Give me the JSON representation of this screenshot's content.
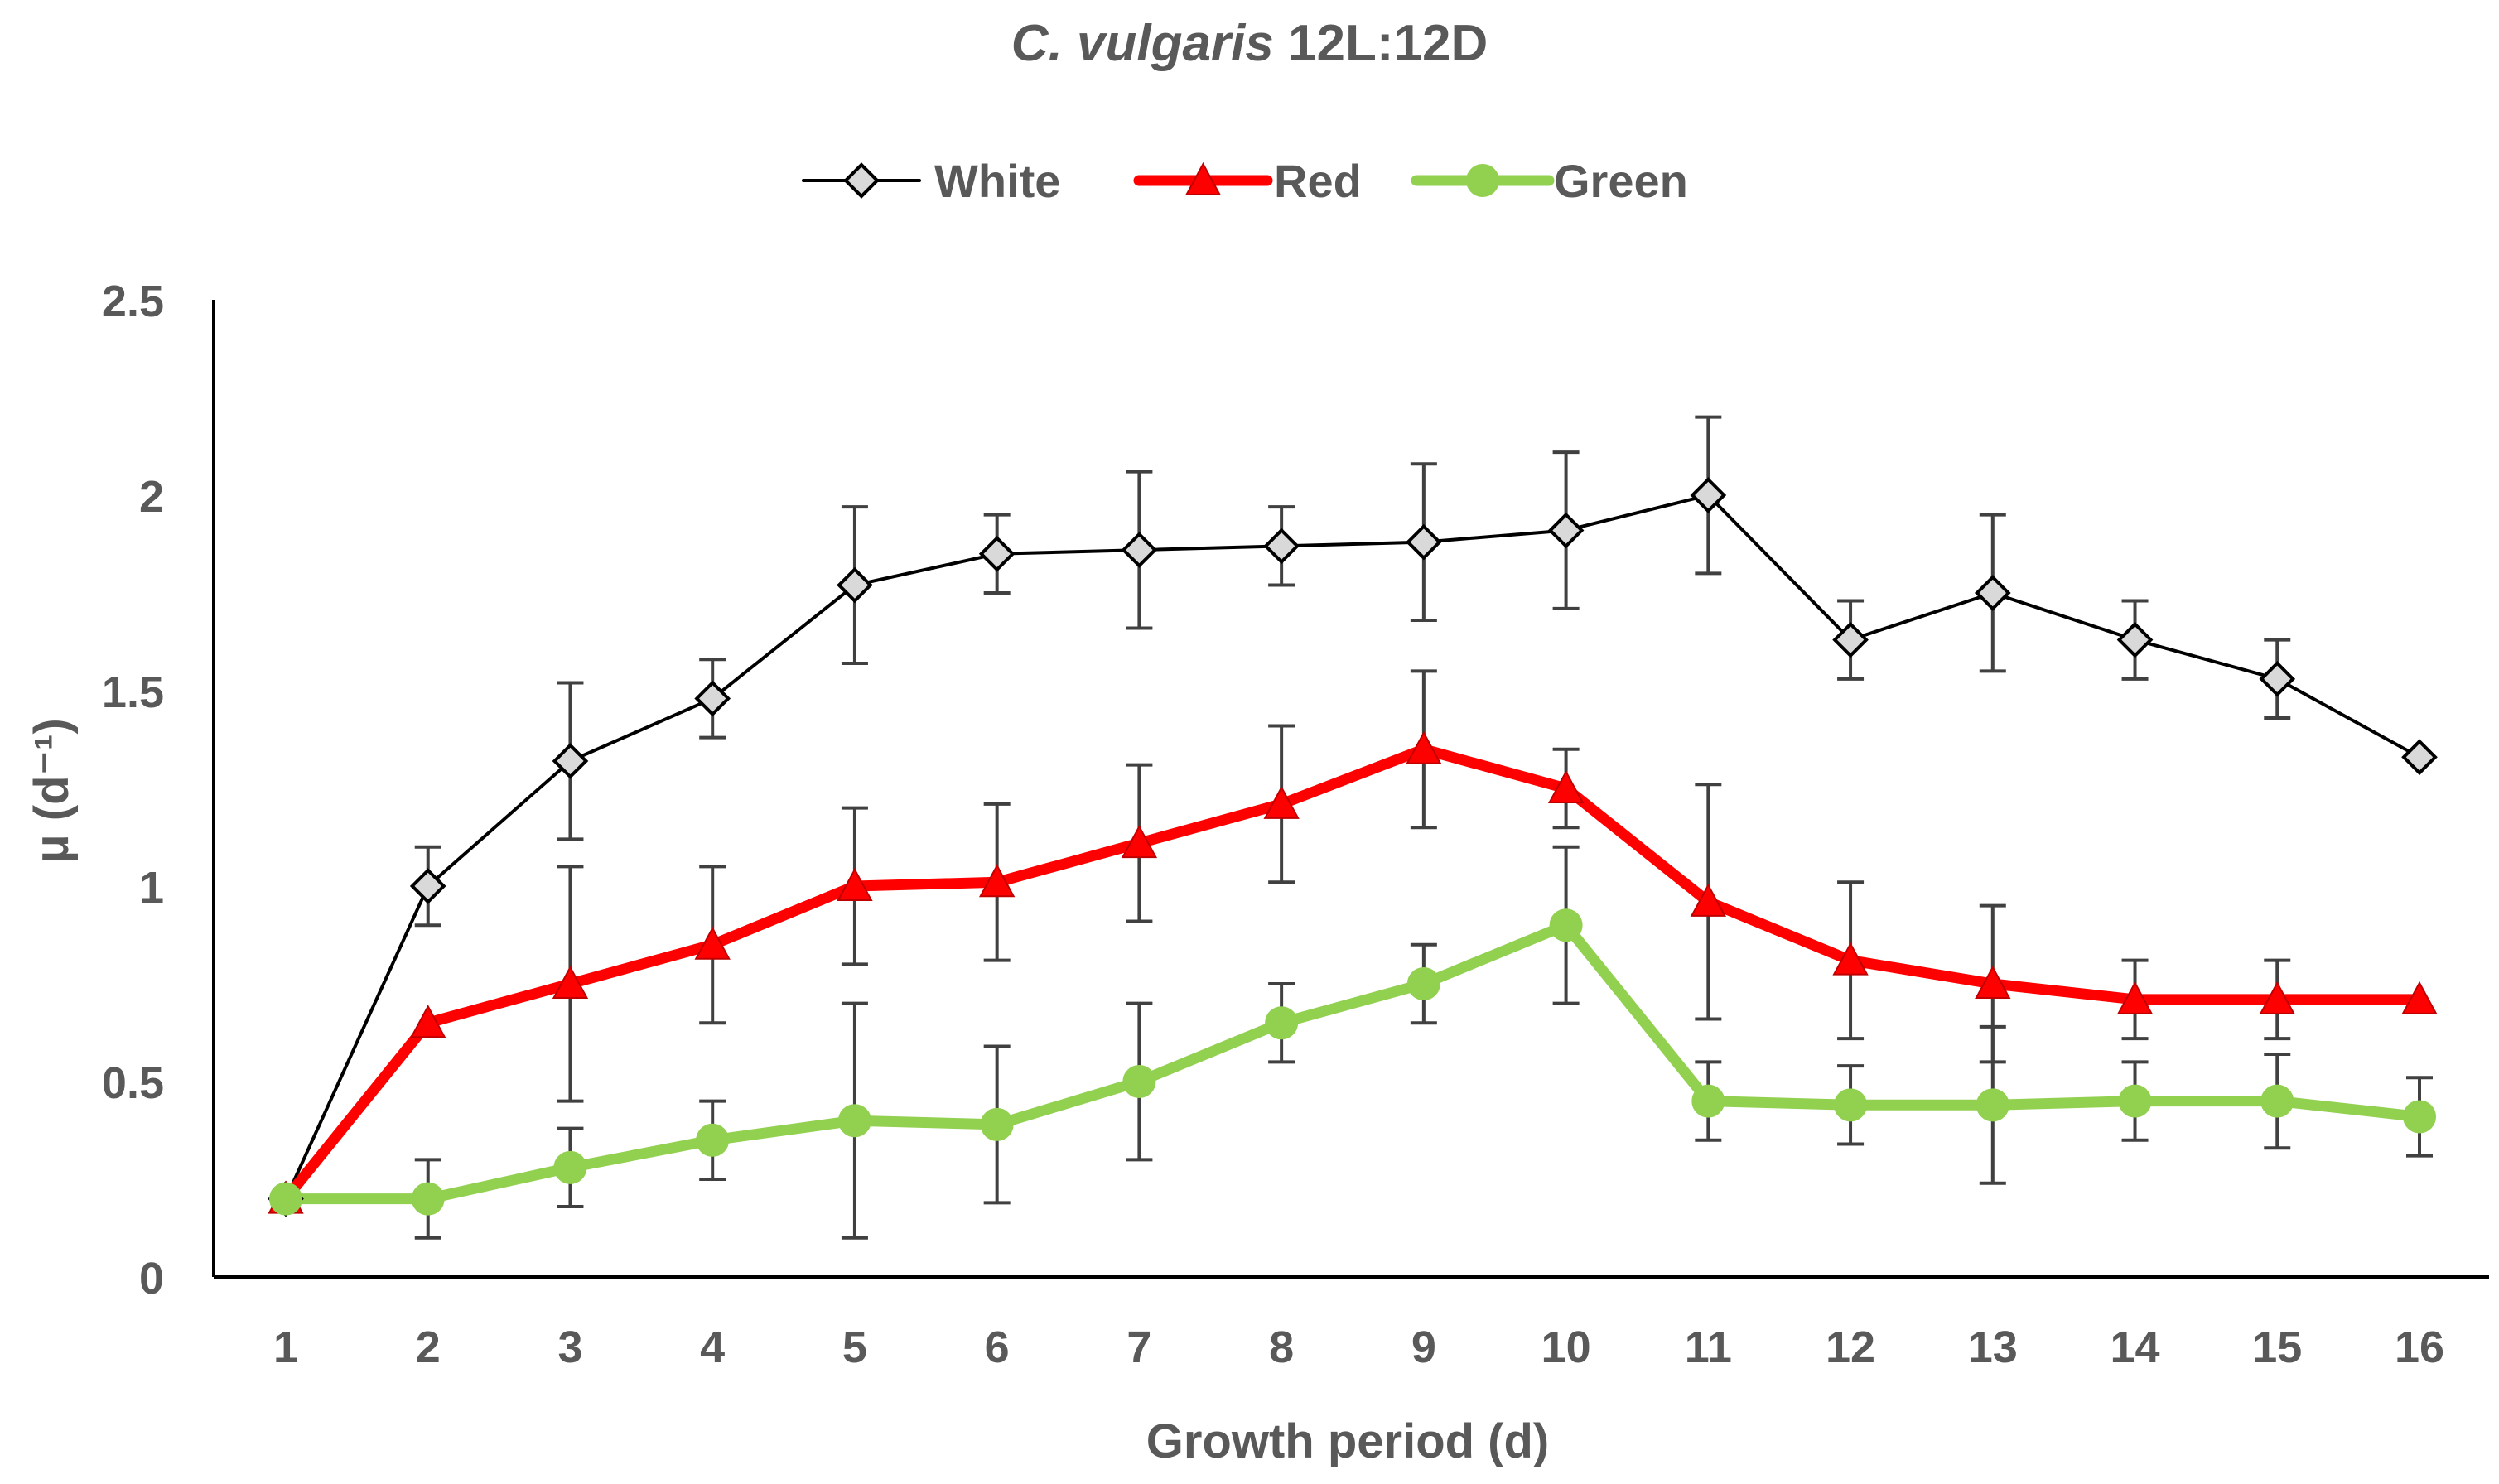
{
  "chart_data": {
    "type": "line",
    "title_italic": "C. vulgaris",
    "title_rest": "12L:12D",
    "xlabel": "Growth period (d)",
    "ylabel": "μ (d⁻¹)",
    "ylim": [
      0,
      2.5
    ],
    "yticks": [
      "0",
      "0.5",
      "1",
      "1.5",
      "2",
      "2.5"
    ],
    "x": [
      1,
      2,
      3,
      4,
      5,
      6,
      7,
      8,
      9,
      10,
      11,
      12,
      13,
      14,
      15,
      16
    ],
    "legend_position": "top",
    "series": [
      {
        "name": "White",
        "color": "#000000",
        "marker": "diamond",
        "marker_fill": "#d9d9d9",
        "values": [
          0.2,
          1.0,
          1.32,
          1.48,
          1.77,
          1.85,
          1.86,
          1.87,
          1.88,
          1.91,
          2.0,
          1.63,
          1.75,
          1.63,
          1.53,
          1.33
        ],
        "errors": [
          0,
          0.1,
          0.2,
          0.1,
          0.2,
          0.1,
          0.2,
          0.1,
          0.2,
          0.2,
          0.2,
          0.1,
          0.2,
          0.1,
          0.1,
          0
        ]
      },
      {
        "name": "Red",
        "color": "#ff0000",
        "marker": "triangle",
        "marker_fill": "#ff0000",
        "values": [
          0.2,
          0.65,
          0.75,
          0.85,
          1.0,
          1.01,
          1.11,
          1.21,
          1.35,
          1.25,
          0.96,
          0.81,
          0.75,
          0.71,
          0.71,
          0.71
        ],
        "errors": [
          0,
          0,
          0.3,
          0.2,
          0.2,
          0.2,
          0.2,
          0.2,
          0.2,
          0.1,
          0.3,
          0.2,
          0.2,
          0.1,
          0.1,
          0
        ]
      },
      {
        "name": "Green",
        "color": "#92d050",
        "marker": "circle",
        "marker_fill": "#92d050",
        "values": [
          0.2,
          0.2,
          0.28,
          0.35,
          0.4,
          0.39,
          0.5,
          0.65,
          0.75,
          0.9,
          0.45,
          0.44,
          0.44,
          0.45,
          0.45,
          0.41
        ],
        "errors": [
          0,
          0.1,
          0.1,
          0.1,
          0.3,
          0.2,
          0.2,
          0.1,
          0.1,
          0.2,
          0.1,
          0.1,
          0.2,
          0.1,
          0.12,
          0.1
        ]
      }
    ]
  }
}
